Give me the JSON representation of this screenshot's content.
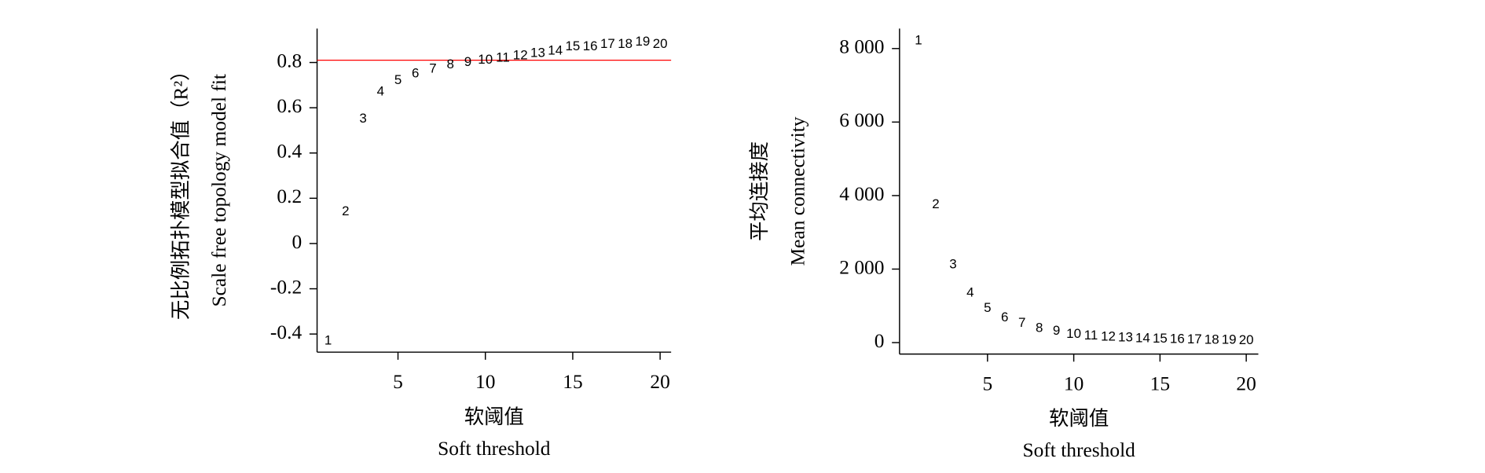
{
  "chart_data": [
    {
      "type": "scatter",
      "marker": "label",
      "color": "#ff0000",
      "xlabel": [
        "软阈值",
        "Soft threshold"
      ],
      "ylabel": [
        "无比例拓扑模型拟合值（R²）",
        "Scale free topology model fit"
      ],
      "x": [
        1,
        2,
        3,
        4,
        5,
        6,
        7,
        8,
        9,
        10,
        11,
        12,
        13,
        14,
        15,
        16,
        17,
        18,
        19,
        20
      ],
      "values": [
        -0.43,
        0.14,
        0.55,
        0.67,
        0.72,
        0.75,
        0.77,
        0.79,
        0.8,
        0.81,
        0.82,
        0.83,
        0.84,
        0.85,
        0.87,
        0.87,
        0.88,
        0.88,
        0.89,
        0.88
      ],
      "hline": 0.81,
      "xlim": [
        0.37,
        20.63
      ],
      "ylim": [
        -0.48,
        0.95
      ],
      "xticks": [
        5,
        10,
        15,
        20
      ],
      "yticks": [
        -0.4,
        -0.2,
        0,
        0.2,
        0.4,
        0.6,
        0.8
      ]
    },
    {
      "type": "scatter",
      "marker": "label",
      "color": "#ff0000",
      "xlabel": [
        "软阈值",
        "Soft threshold"
      ],
      "ylabel": [
        "平均连接度",
        "Mean connectivity"
      ],
      "x": [
        1,
        2,
        3,
        4,
        5,
        6,
        7,
        8,
        9,
        10,
        11,
        12,
        13,
        14,
        15,
        16,
        17,
        18,
        19,
        20
      ],
      "values": [
        8210,
        3750,
        2120,
        1350,
        930,
        670,
        520,
        390,
        310,
        230,
        180,
        155,
        130,
        110,
        100,
        90,
        80,
        70,
        60,
        50
      ],
      "xlim": [
        -0.1,
        20.7
      ],
      "ylim": [
        -311,
        8544
      ],
      "xticks": [
        5,
        10,
        15,
        20
      ],
      "yticks": [
        {
          "value": 0,
          "label": "0"
        },
        {
          "value": 2000,
          "label": "2 000"
        },
        {
          "value": 4000,
          "label": "4 000"
        },
        {
          "value": 6000,
          "label": "6 000"
        },
        {
          "value": 8000,
          "label": "8 000"
        }
      ]
    }
  ]
}
